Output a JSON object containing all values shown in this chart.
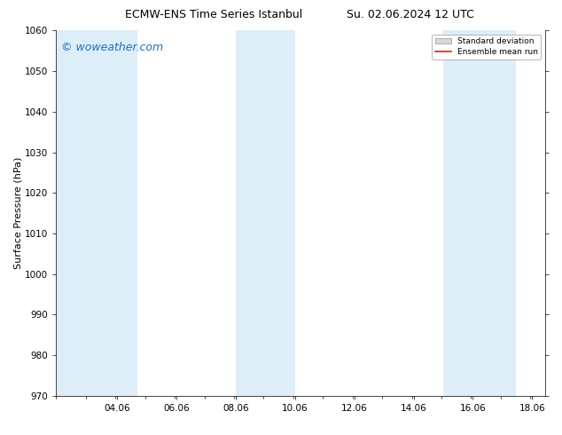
{
  "title_left": "ECMW-ENS Time Series Istanbul",
  "title_right": "Su. 02.06.2024 12 UTC",
  "ylabel": "Surface Pressure (hPa)",
  "ylim": [
    970,
    1060
  ],
  "yticks": [
    970,
    980,
    990,
    1000,
    1010,
    1020,
    1030,
    1040,
    1050,
    1060
  ],
  "xlim": [
    2.0,
    18.5
  ],
  "xtick_labels": [
    "04.06",
    "06.06",
    "08.06",
    "10.06",
    "12.06",
    "14.06",
    "16.06",
    "18.06"
  ],
  "xtick_positions": [
    4.06,
    6.06,
    8.06,
    10.06,
    12.06,
    14.06,
    16.06,
    18.06
  ],
  "background_color": "#ffffff",
  "plot_bg_color": "#ffffff",
  "shaded_bands": [
    {
      "x_start": 2.0,
      "x_end": 4.75,
      "color": "#ddeef8"
    },
    {
      "x_start": 8.06,
      "x_end": 10.06,
      "color": "#ddeef8"
    },
    {
      "x_start": 15.06,
      "x_end": 17.5,
      "color": "#ddeef8"
    }
  ],
  "watermark_text": "© woweather.com",
  "watermark_color": "#1e6fbf",
  "watermark_fontsize": 9,
  "legend_std_dev_color": "#d8d8d8",
  "legend_mean_color": "#dd2200",
  "title_fontsize": 9,
  "ylabel_fontsize": 8,
  "tick_fontsize": 7.5
}
